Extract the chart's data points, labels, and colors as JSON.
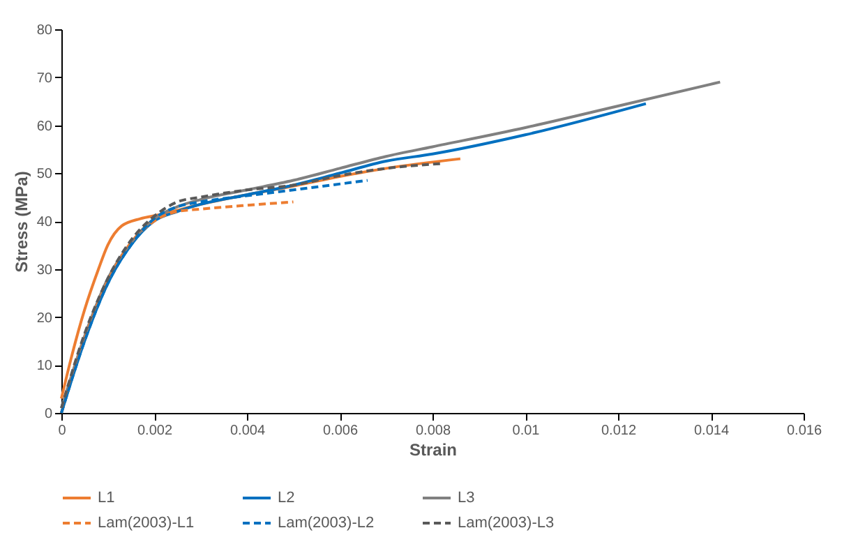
{
  "chart_data": {
    "type": "line",
    "xlabel": "Strain",
    "ylabel": "Stress (MPa)",
    "xlim": [
      0,
      0.016
    ],
    "ylim": [
      0,
      80
    ],
    "xticks": [
      0,
      0.002,
      0.004,
      0.006,
      0.008,
      0.01,
      0.012,
      0.014,
      0.016
    ],
    "yticks": [
      0,
      10,
      20,
      30,
      40,
      50,
      60,
      70,
      80
    ],
    "grid": false,
    "legend": "bottom",
    "series": [
      {
        "name": "L1",
        "color": "#ed7d31",
        "line_style": "solid",
        "x": [
          0,
          0.0002,
          0.0005,
          0.0008,
          0.001,
          0.0013,
          0.0017,
          0.0021,
          0.003,
          0.004,
          0.005,
          0.006,
          0.007,
          0.0086
        ],
        "values": [
          3,
          11,
          21.5,
          30,
          35,
          39,
          40.5,
          41.3,
          43.5,
          45.5,
          47.3,
          49.3,
          51,
          53
        ]
      },
      {
        "name": "L2",
        "color": "#0070c0",
        "line_style": "solid",
        "x": [
          0,
          0.0005,
          0.001,
          0.0015,
          0.002,
          0.0025,
          0.003,
          0.004,
          0.005,
          0.006,
          0.007,
          0.008,
          0.01,
          0.0126
        ],
        "values": [
          0,
          15,
          27,
          35,
          40,
          42,
          43.5,
          45.5,
          47.5,
          50,
          52.5,
          54,
          58,
          64.5
        ]
      },
      {
        "name": "L3",
        "color": "#808080",
        "line_style": "solid",
        "x": [
          0,
          0.0005,
          0.001,
          0.0015,
          0.002,
          0.0025,
          0.003,
          0.004,
          0.005,
          0.006,
          0.007,
          0.008,
          0.01,
          0.012,
          0.0142
        ],
        "values": [
          1,
          16,
          28,
          35.5,
          40.5,
          43,
          44.5,
          46.5,
          48.5,
          51,
          53.5,
          55.5,
          59.5,
          64,
          69
        ]
      },
      {
        "name": "Lam(2003)-L1",
        "color": "#ed7d31",
        "line_style": "dashed",
        "x": [
          0,
          0.0005,
          0.001,
          0.0015,
          0.002,
          0.0025,
          0.003,
          0.004,
          0.005
        ],
        "values": [
          0,
          15.5,
          27.5,
          35.5,
          40,
          42,
          42.5,
          43.3,
          44
        ]
      },
      {
        "name": "Lam(2003)-L2",
        "color": "#0070c0",
        "line_style": "dashed",
        "x": [
          0,
          0.0005,
          0.001,
          0.0015,
          0.002,
          0.0025,
          0.003,
          0.004,
          0.005,
          0.0066
        ],
        "values": [
          0,
          15,
          27,
          35,
          40.5,
          43,
          44,
          45.3,
          46.5,
          48.5
        ]
      },
      {
        "name": "Lam(2003)-L3",
        "color": "#595959",
        "line_style": "dashed",
        "x": [
          0,
          0.0005,
          0.001,
          0.0015,
          0.002,
          0.0025,
          0.003,
          0.004,
          0.005,
          0.006,
          0.007,
          0.0082
        ],
        "values": [
          1,
          16.5,
          28,
          36,
          41,
          44,
          45,
          46.5,
          47.5,
          49.5,
          51,
          52
        ]
      }
    ]
  }
}
